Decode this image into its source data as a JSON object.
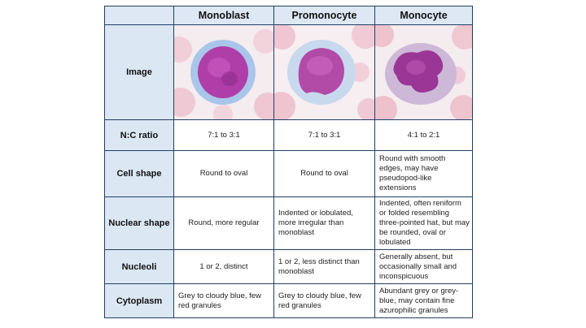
{
  "columns": [
    "Monoblast",
    "Promonocyte",
    "Monocyte"
  ],
  "rows": [
    {
      "label": "Image"
    },
    {
      "label": "N:C ratio",
      "cells": [
        "7:1 to 3:1",
        "7:1 to 3:1",
        "4:1 to 2:1"
      ]
    },
    {
      "label": "Cell shape",
      "cells": [
        "Round to oval",
        "Round to oval",
        "Round with smooth edges, may have pseudopod-like extensions"
      ]
    },
    {
      "label": "Nuclear shape",
      "cells": [
        "Round, more regular",
        "Indented or lobulated, more irregular than monoblast",
        "Indented, often reniform or folded resembling three-pointed hat, but may be rounded, oval or lobulated"
      ]
    },
    {
      "label": "Nucleoli",
      "cells": [
        "1 or 2, distinct",
        "1 or 2, less distinct than monoblast",
        "Generally absent, but occasionally small and inconspicuous"
      ]
    },
    {
      "label": "Cytoplasm",
      "cells": [
        "Grey to cloudy blue, few red granules",
        "Grey to cloudy blue, few red granules",
        "Abundant grey or grey-blue, may contain fine azurophilic granules"
      ]
    }
  ]
}
